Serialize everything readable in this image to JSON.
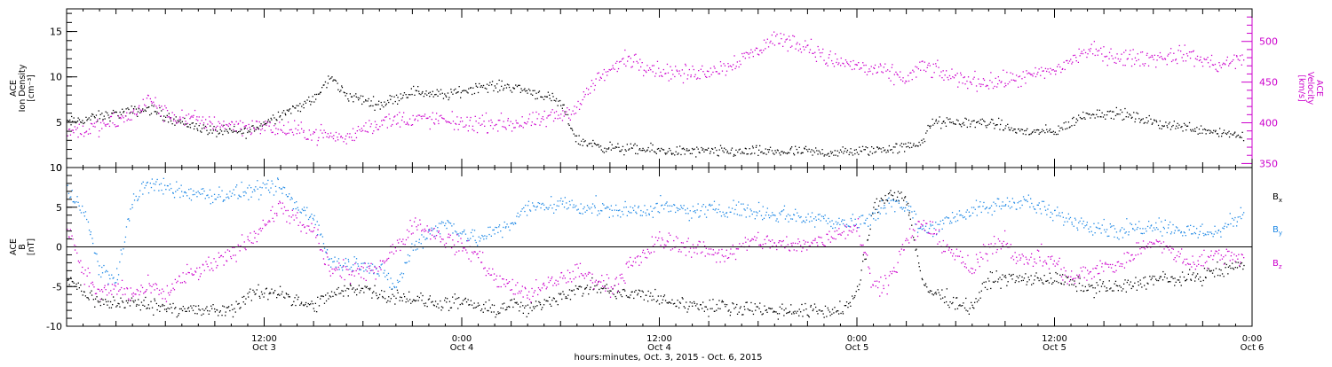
{
  "chart_data": [
    {
      "type": "scatter",
      "panel": "top",
      "left_axis": {
        "label_lines": [
          "ACE",
          "Ion Density",
          "[cm⁻³]"
        ],
        "range": [
          0,
          17.5
        ],
        "ticks": [
          0,
          5,
          10,
          15
        ],
        "color": "#000000"
      },
      "right_axis": {
        "label_lines": [
          "ACE",
          "Velocity",
          "[km/s]"
        ],
        "range": [
          345,
          540
        ],
        "ticks": [
          350,
          400,
          450,
          500
        ],
        "color": "#cc00cc"
      },
      "series": [
        {
          "color": "#000000",
          "axis": "left",
          "points": [
            [
              0,
              5
            ],
            [
              3,
              6
            ],
            [
              5,
              6.5
            ],
            [
              7,
              5
            ],
            [
              9,
              4
            ],
            [
              11,
              4
            ],
            [
              13,
              6
            ],
            [
              15,
              7.5
            ],
            [
              16,
              10
            ],
            [
              17,
              8
            ],
            [
              19,
              7
            ],
            [
              21,
              8.5
            ],
            [
              23,
              8
            ],
            [
              25,
              9
            ],
            [
              27,
              9
            ],
            [
              29,
              8
            ],
            [
              30,
              7
            ],
            [
              30.5,
              5
            ],
            [
              31,
              3
            ],
            [
              33,
              2.2
            ],
            [
              35,
              2
            ],
            [
              38,
              1.8
            ],
            [
              41,
              1.8
            ],
            [
              44,
              1.8
            ],
            [
              47,
              1.7
            ],
            [
              49,
              2
            ],
            [
              51,
              2.3
            ],
            [
              52,
              3
            ],
            [
              52.5,
              5
            ],
            [
              54,
              5
            ],
            [
              56,
              5
            ],
            [
              58,
              4
            ],
            [
              60,
              4
            ],
            [
              61,
              5
            ],
            [
              62,
              6
            ],
            [
              64,
              6
            ],
            [
              66,
              5
            ],
            [
              68,
              4.5
            ],
            [
              70,
              4
            ],
            [
              71.5,
              3.5
            ]
          ],
          "scatter": 0.9
        },
        {
          "color": "#cc00cc",
          "axis": "right",
          "points": [
            [
              0,
              390
            ],
            [
              2,
              395
            ],
            [
              4,
              410
            ],
            [
              5,
              430
            ],
            [
              6,
              410
            ],
            [
              9,
              400
            ],
            [
              12,
              395
            ],
            [
              14,
              390
            ],
            [
              16,
              385
            ],
            [
              17,
              380
            ],
            [
              18,
              395
            ],
            [
              20,
              405
            ],
            [
              22,
              405
            ],
            [
              24,
              400
            ],
            [
              26,
              400
            ],
            [
              28,
              400
            ],
            [
              29,
              405
            ],
            [
              30,
              410
            ],
            [
              31,
              420
            ],
            [
              32,
              450
            ],
            [
              34,
              480
            ],
            [
              36,
              465
            ],
            [
              38,
              460
            ],
            [
              40,
              470
            ],
            [
              42,
              490
            ],
            [
              43,
              505
            ],
            [
              45,
              495
            ],
            [
              46,
              480
            ],
            [
              48,
              470
            ],
            [
              50,
              460
            ],
            [
              51,
              455
            ],
            [
              52,
              470
            ],
            [
              54,
              455
            ],
            [
              56,
              450
            ],
            [
              58,
              455
            ],
            [
              60,
              465
            ],
            [
              62,
              490
            ],
            [
              64,
              480
            ],
            [
              66,
              480
            ],
            [
              68,
              485
            ],
            [
              70,
              470
            ],
            [
              71.5,
              480
            ]
          ],
          "scatter": 16
        }
      ]
    },
    {
      "type": "scatter",
      "panel": "bottom",
      "left_axis": {
        "label_lines": [
          "ACE",
          "B",
          "[nT]"
        ],
        "range": [
          -10,
          10
        ],
        "ticks": [
          -10,
          -5,
          0,
          5,
          10
        ],
        "color": "#000000"
      },
      "legend": [
        {
          "label": "B",
          "sub": "x",
          "color": "#000000"
        },
        {
          "label": "B",
          "sub": "y",
          "color": "#1e88e5"
        },
        {
          "label": "B",
          "sub": "z",
          "color": "#cc00cc"
        }
      ],
      "series": [
        {
          "name": "Bx",
          "color": "#000000",
          "points": [
            [
              0,
              -4
            ],
            [
              2,
              -7
            ],
            [
              4,
              -7
            ],
            [
              6,
              -7.5
            ],
            [
              8,
              -8
            ],
            [
              10,
              -8
            ],
            [
              11,
              -6
            ],
            [
              13,
              -5.5
            ],
            [
              14,
              -7
            ],
            [
              15,
              -7.5
            ],
            [
              16,
              -6
            ],
            [
              18,
              -5
            ],
            [
              19,
              -6
            ],
            [
              20,
              -6
            ],
            [
              22,
              -7
            ],
            [
              24,
              -7
            ],
            [
              26,
              -8
            ],
            [
              27,
              -7
            ],
            [
              28,
              -8
            ],
            [
              29,
              -7
            ],
            [
              30,
              -6
            ],
            [
              32,
              -5
            ],
            [
              34,
              -6
            ],
            [
              35,
              -6
            ],
            [
              37,
              -7
            ],
            [
              39,
              -7.5
            ],
            [
              41,
              -7.5
            ],
            [
              43,
              -8
            ],
            [
              45,
              -8
            ],
            [
              47,
              -8
            ],
            [
              48,
              -6
            ],
            [
              49,
              5
            ],
            [
              50,
              7
            ],
            [
              51,
              6
            ],
            [
              52,
              -5
            ],
            [
              54,
              -7
            ],
            [
              55,
              -7.5
            ],
            [
              56,
              -4
            ],
            [
              58,
              -4
            ],
            [
              60,
              -4
            ],
            [
              62,
              -5
            ],
            [
              64,
              -5
            ],
            [
              66,
              -4
            ],
            [
              68,
              -4
            ],
            [
              70,
              -3
            ],
            [
              71.5,
              -2
            ]
          ],
          "scatter": 1.4
        },
        {
          "name": "By",
          "color": "#1e88e5",
          "points": [
            [
              0,
              7
            ],
            [
              1,
              5
            ],
            [
              2,
              -3
            ],
            [
              3,
              -4
            ],
            [
              4,
              6
            ],
            [
              5,
              8
            ],
            [
              7,
              7
            ],
            [
              9,
              6.5
            ],
            [
              11,
              7
            ],
            [
              13,
              7.5
            ],
            [
              14,
              5
            ],
            [
              15,
              4
            ],
            [
              16,
              -2
            ],
            [
              18,
              -2
            ],
            [
              19,
              -3
            ],
            [
              20,
              -5
            ],
            [
              21,
              0
            ],
            [
              22,
              2
            ],
            [
              23,
              3
            ],
            [
              24,
              2
            ],
            [
              25,
              1
            ],
            [
              26,
              2
            ],
            [
              27,
              3
            ],
            [
              28,
              5
            ],
            [
              30,
              5.5
            ],
            [
              32,
              5
            ],
            [
              34,
              4.5
            ],
            [
              36,
              5
            ],
            [
              38,
              4.5
            ],
            [
              40,
              5
            ],
            [
              42,
              4.5
            ],
            [
              44,
              4
            ],
            [
              46,
              3.5
            ],
            [
              48,
              3
            ],
            [
              49,
              4
            ],
            [
              50,
              6
            ],
            [
              51,
              5
            ],
            [
              52,
              2
            ],
            [
              53,
              3
            ],
            [
              54,
              4
            ],
            [
              56,
              5
            ],
            [
              58,
              6
            ],
            [
              60,
              4
            ],
            [
              62,
              3
            ],
            [
              64,
              2
            ],
            [
              66,
              3
            ],
            [
              68,
              2
            ],
            [
              70,
              2
            ],
            [
              71.5,
              4.5
            ]
          ],
          "scatter": 1.6
        },
        {
          "name": "Bz",
          "color": "#cc00cc",
          "points": [
            [
              0,
              3
            ],
            [
              1,
              -3
            ],
            [
              2,
              -6
            ],
            [
              3,
              -5
            ],
            [
              4,
              -6
            ],
            [
              5,
              -5
            ],
            [
              6,
              -6
            ],
            [
              7,
              -4
            ],
            [
              8,
              -3
            ],
            [
              9,
              -2
            ],
            [
              10,
              -1
            ],
            [
              11,
              1
            ],
            [
              12,
              3
            ],
            [
              13,
              5
            ],
            [
              14,
              3
            ],
            [
              15,
              2
            ],
            [
              16,
              -3
            ],
            [
              17,
              -3
            ],
            [
              18,
              -3.5
            ],
            [
              19,
              -2
            ],
            [
              20,
              0
            ],
            [
              21,
              3
            ],
            [
              22,
              2
            ],
            [
              23,
              1
            ],
            [
              24,
              0
            ],
            [
              25,
              -1
            ],
            [
              26,
              -4
            ],
            [
              27,
              -5
            ],
            [
              28,
              -6
            ],
            [
              29,
              -5
            ],
            [
              30,
              -4
            ],
            [
              31,
              -3
            ],
            [
              32,
              -4
            ],
            [
              33,
              -5
            ],
            [
              34,
              -3
            ],
            [
              35,
              -1
            ],
            [
              36,
              1
            ],
            [
              38,
              0
            ],
            [
              40,
              -1
            ],
            [
              42,
              1
            ],
            [
              44,
              0
            ],
            [
              46,
              1
            ],
            [
              47,
              2
            ],
            [
              48,
              3
            ],
            [
              49,
              -5
            ],
            [
              50,
              -4
            ],
            [
              51,
              1
            ],
            [
              52,
              3
            ],
            [
              53,
              1
            ],
            [
              54,
              -1
            ],
            [
              55,
              -3
            ],
            [
              56,
              0
            ],
            [
              57,
              1
            ],
            [
              58,
              -2
            ],
            [
              59,
              -1
            ],
            [
              60,
              -2
            ],
            [
              61,
              -4
            ],
            [
              62,
              -3
            ],
            [
              64,
              -2
            ],
            [
              66,
              1
            ],
            [
              68,
              -2
            ],
            [
              70,
              -1
            ],
            [
              71.5,
              -1
            ]
          ],
          "scatter": 1.8
        }
      ]
    }
  ],
  "xaxis": {
    "range_hours": [
      0,
      72
    ],
    "label": "hours:minutes, Oct.  3, 2015 - Oct.  6, 2015",
    "major_ticks": [
      {
        "hour": 0,
        "time": "",
        "date": ""
      },
      {
        "hour": 12,
        "time": "12:00",
        "date": "Oct 3"
      },
      {
        "hour": 24,
        "time": "0:00",
        "date": "Oct 4"
      },
      {
        "hour": 36,
        "time": "12:00",
        "date": "Oct 4"
      },
      {
        "hour": 48,
        "time": "0:00",
        "date": "Oct 5"
      },
      {
        "hour": 60,
        "time": "12:00",
        "date": "Oct 5"
      },
      {
        "hour": 72,
        "time": "0:00",
        "date": "Oct 6"
      }
    ]
  }
}
